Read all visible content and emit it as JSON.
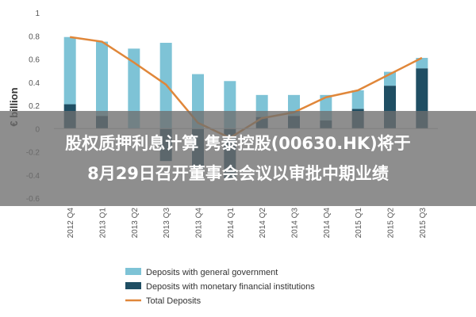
{
  "chart_data": {
    "type": "bar",
    "stacked": true,
    "categories": [
      "2012 Q4",
      "2013 Q1",
      "2013 Q2",
      "2013 Q3",
      "2013 Q4",
      "2014 Q1",
      "2014 Q2",
      "2014 Q3",
      "2014 Q4",
      "2015 Q1",
      "2015 Q2",
      "2015 Q3"
    ],
    "series": [
      {
        "name": "Deposits with general government",
        "color": "#7ec3d6",
        "type": "bar",
        "values": [
          0.58,
          0.64,
          0.69,
          0.74,
          0.47,
          0.41,
          0.19,
          0.18,
          0.22,
          0.16,
          0.12,
          0.09
        ]
      },
      {
        "name": "Deposits with monetary financial institutions",
        "color": "#1f4e63",
        "type": "bar",
        "values": [
          0.21,
          0.11,
          0.0,
          -0.28,
          -0.35,
          -0.43,
          0.1,
          0.11,
          0.07,
          0.17,
          0.37,
          0.52
        ]
      },
      {
        "name": "Total Deposits",
        "color": "#e0873a",
        "type": "line",
        "values": [
          0.79,
          0.75,
          0.57,
          0.38,
          0.05,
          -0.08,
          0.09,
          0.14,
          0.27,
          0.33,
          0.47,
          0.61
        ]
      }
    ],
    "ylabel": "€ billion",
    "xlabel": "",
    "ylim": [
      -0.6,
      1.0
    ],
    "yticks": [
      -0.6,
      -0.4,
      -0.2,
      0,
      0.2,
      0.4,
      0.6,
      0.8,
      1
    ],
    "ytick_labels": [
      "-0.6",
      "-0.4",
      "-0.2",
      "0",
      "0.2",
      "0.4",
      "0.6",
      "0.8",
      "1"
    ],
    "grid": false,
    "legend_position": "bottom"
  },
  "overlay": {
    "headline_line1": "股权质押利息计算 隽泰控股(00630.HK)将于",
    "headline_line2": "8月29日召开董事会会议以审批中期业绩"
  }
}
